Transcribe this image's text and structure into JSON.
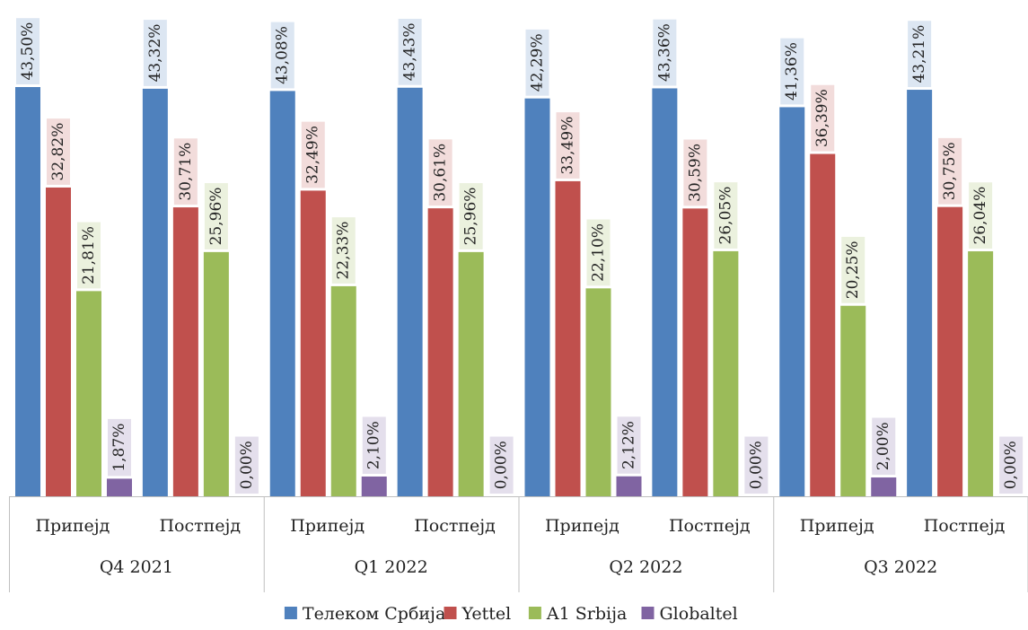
{
  "chart_data": {
    "type": "bar",
    "ylim": [
      0,
      45
    ],
    "grid": false,
    "legend_position": "bottom",
    "groups": [
      {
        "label": "Q4 2021",
        "subcategories": [
          "Припејд",
          "Постпејд"
        ]
      },
      {
        "label": "Q1 2022",
        "subcategories": [
          "Припејд",
          "Постпејд"
        ]
      },
      {
        "label": "Q2 2022",
        "subcategories": [
          "Припејд",
          "Постпејд"
        ]
      },
      {
        "label": "Q3 2022",
        "subcategories": [
          "Припејд",
          "Постпејд"
        ]
      }
    ],
    "series": [
      {
        "name": "Телеком Србија",
        "color": "#4f81bd",
        "label_bg": "#dce6f2",
        "values": [
          43.5,
          43.32,
          43.08,
          43.43,
          42.29,
          43.36,
          41.36,
          43.21
        ],
        "labels": [
          "43,50%",
          "43,32%",
          "43,08%",
          "43,43%",
          "42,29%",
          "43,36%",
          "41,36%",
          "43,21%"
        ]
      },
      {
        "name": "Yettel",
        "color": "#c0504d",
        "label_bg": "#f2dcdb",
        "values": [
          32.82,
          30.71,
          32.49,
          30.61,
          33.49,
          30.59,
          36.39,
          30.75
        ],
        "labels": [
          "32,82%",
          "30,71%",
          "32,49%",
          "30,61%",
          "33,49%",
          "30,59%",
          "36,39%",
          "30,75%"
        ]
      },
      {
        "name": "A1 Srbija",
        "color": "#9bbb59",
        "label_bg": "#ebf1de",
        "values": [
          21.81,
          25.96,
          22.33,
          25.96,
          22.1,
          26.05,
          20.25,
          26.04
        ],
        "labels": [
          "21,81%",
          "25,96%",
          "22,33%",
          "25,96%",
          "22,10%",
          "26,05%",
          "20,25%",
          "26,04%"
        ]
      },
      {
        "name": "Globaltel",
        "color": "#8064a2",
        "label_bg": "#e4dfec",
        "values": [
          1.87,
          0.0,
          2.1,
          0.0,
          2.12,
          0.0,
          2.0,
          0.0
        ],
        "labels": [
          "1,87%",
          "0,00%",
          "2,10%",
          "0,00%",
          "2,12%",
          "0,00%",
          "2,00%",
          "0,00%"
        ]
      }
    ]
  }
}
